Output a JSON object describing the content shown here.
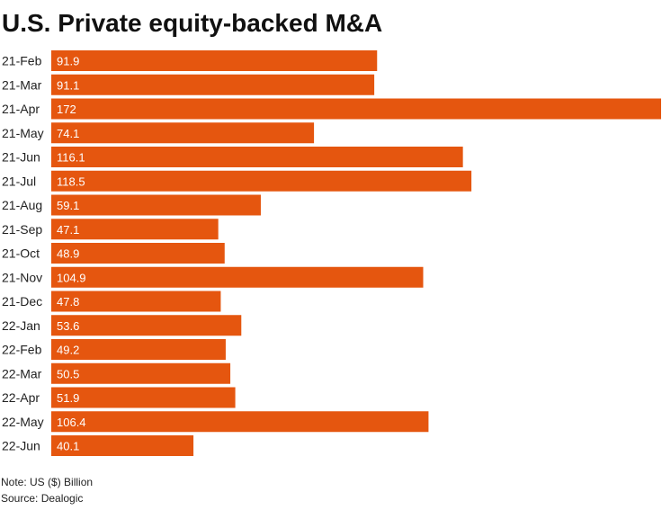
{
  "chart_data": {
    "type": "bar",
    "orientation": "horizontal",
    "title": "U.S. Private equity-backed M&A",
    "categories": [
      "21-Feb",
      "21-Mar",
      "21-Apr",
      "21-May",
      "21-Jun",
      "21-Jul",
      "21-Aug",
      "21-Sep",
      "21-Oct",
      "21-Nov",
      "21-Dec",
      "22-Jan",
      "22-Feb",
      "22-Mar",
      "22-Apr",
      "22-May",
      "22-Jun"
    ],
    "values": [
      91.9,
      91.1,
      172,
      74.1,
      116.1,
      118.5,
      59.1,
      47.1,
      48.9,
      104.9,
      47.8,
      53.6,
      49.2,
      50.5,
      51.9,
      106.4,
      40.1
    ],
    "value_labels": [
      "91.9",
      "91.1",
      "172",
      "74.1",
      "116.1",
      "118.5",
      "59.1",
      "47.1",
      "48.9",
      "104.9",
      "47.8",
      "53.6",
      "49.2",
      "50.5",
      "51.9",
      "106.4",
      "40.1"
    ],
    "xlim": [
      0,
      172
    ],
    "grid": false,
    "legend": "none",
    "bar_color": "#e5560f"
  },
  "footer": {
    "note": "Note: US ($) Billion",
    "source": "Source: Dealogic"
  }
}
